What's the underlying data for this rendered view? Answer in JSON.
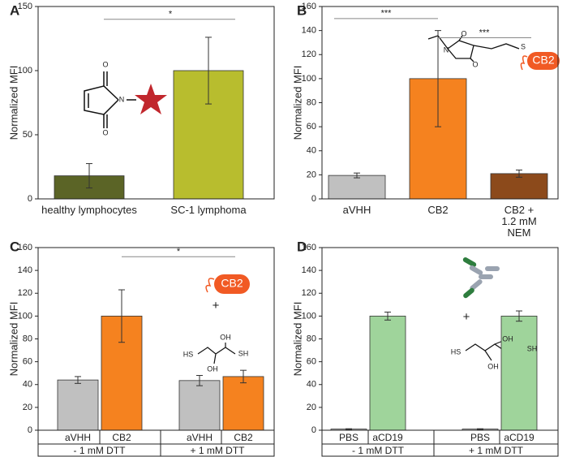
{
  "chart_data": [
    {
      "type": "bar",
      "letter": "A",
      "y_label": "Normalized MFI",
      "categories": [
        "healthy lymphocytes",
        "SC-1 lymphoma"
      ],
      "values": [
        18,
        100
      ],
      "errors": [
        9.5,
        26
      ],
      "colors": [
        "#5b6426",
        "#b8bd2e"
      ],
      "ylim": [
        0,
        150
      ],
      "yticks": [
        0,
        50,
        100,
        150
      ],
      "annotations": [
        "*"
      ],
      "structure_labels": [
        "O",
        "N",
        "O"
      ]
    },
    {
      "type": "bar",
      "letter": "B",
      "y_label": "Normalized MFI",
      "categories": [
        "aVHH",
        "CB2",
        "CB2 +\n1.2 mM NEM"
      ],
      "values": [
        19.5,
        100,
        21
      ],
      "errors": [
        2,
        40,
        3
      ],
      "colors": [
        "#c0c0c0",
        "#f5821f",
        "#8c4a1b"
      ],
      "ylim": [
        0,
        160
      ],
      "yticks": [
        0,
        20,
        40,
        60,
        80,
        100,
        120,
        140,
        160
      ],
      "annotations": [
        "***",
        "***"
      ],
      "structure_labels": [
        "O",
        "N",
        "O",
        "S",
        "CB2"
      ]
    },
    {
      "type": "bar",
      "letter": "C",
      "y_label": "Normalized MFI",
      "categories": [
        "aVHH",
        "CB2",
        "aVHH",
        "CB2"
      ],
      "groups": [
        "- 1 mM DTT",
        "+ 1 mM DTT"
      ],
      "values": [
        44,
        100,
        43.5,
        47
      ],
      "errors": [
        3,
        23,
        4.5,
        5.5
      ],
      "colors": [
        "#c0c0c0",
        "#f5821f",
        "#c0c0c0",
        "#f5821f"
      ],
      "ylim": [
        0,
        160
      ],
      "yticks": [
        0,
        20,
        40,
        60,
        80,
        100,
        120,
        140,
        160
      ],
      "annotations": [
        "*"
      ],
      "structure_labels": [
        "CB2",
        "+",
        "OH",
        "HS",
        "SH",
        "OH"
      ]
    },
    {
      "type": "bar",
      "letter": "D",
      "y_label": "Normalized MFI",
      "categories": [
        "PBS",
        "aCD19",
        "PBS",
        "aCD19"
      ],
      "groups": [
        "- 1 mM DTT",
        "+ 1 mM DTT"
      ],
      "values": [
        1,
        100,
        1,
        100
      ],
      "errors": [
        0.3,
        3.5,
        0.3,
        4.5
      ],
      "colors": [
        "#c0c0c0",
        "#9fd49b",
        "#c0c0c0",
        "#9fd49b"
      ],
      "ylim": [
        0,
        160
      ],
      "yticks": [
        0,
        20,
        40,
        60,
        80,
        100,
        120,
        140,
        160
      ],
      "annotations": [],
      "structure_labels": [
        "+",
        "OH",
        "HS",
        "SH",
        "OH"
      ]
    }
  ]
}
